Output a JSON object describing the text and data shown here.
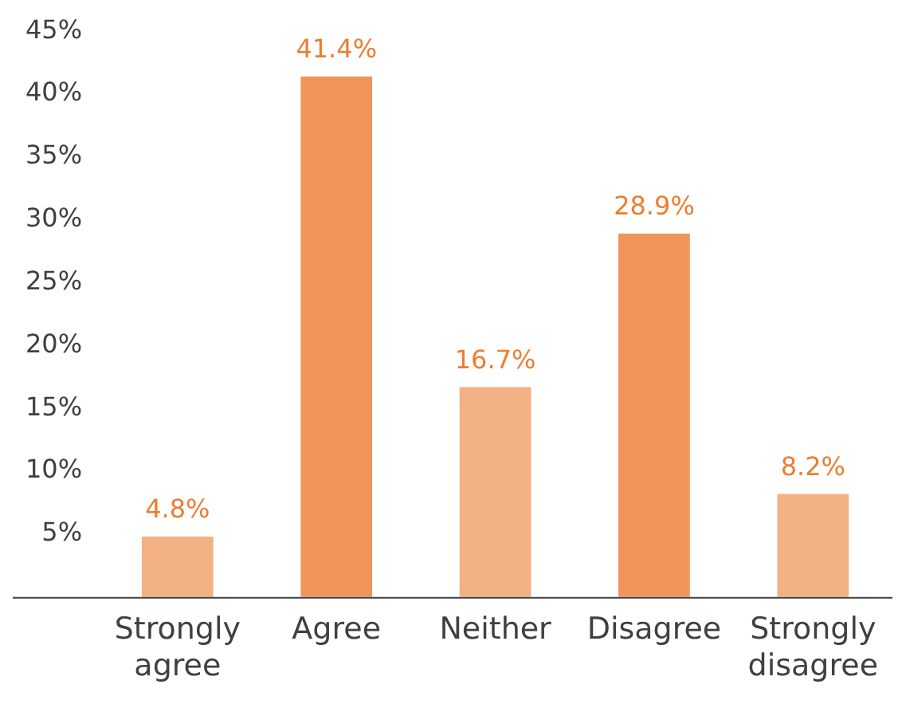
{
  "chart_data": {
    "type": "bar",
    "categories": [
      "Strongly agree",
      "Agree",
      "Neither",
      "Disagree",
      "Strongly disagree"
    ],
    "values": [
      4.8,
      41.4,
      16.7,
      28.9,
      8.2
    ],
    "colors": [
      "#f4b183",
      "#f0955a",
      "#f4b183",
      "#f0955a",
      "#f4b183"
    ],
    "value_labels": [
      "4.8%",
      "41.4%",
      "16.7%",
      "28.9%",
      "8.2%"
    ],
    "ylim": [
      0,
      45
    ],
    "yticks": [
      {
        "value": 5,
        "label": "5%"
      },
      {
        "value": 10,
        "label": "10%"
      },
      {
        "value": 15,
        "label": "15%"
      },
      {
        "value": 20,
        "label": "20%"
      },
      {
        "value": 25,
        "label": "25%"
      },
      {
        "value": 30,
        "label": "30%"
      },
      {
        "value": 35,
        "label": "35%"
      },
      {
        "value": 40,
        "label": "40%"
      },
      {
        "value": 45,
        "label": "45%"
      }
    ],
    "grid": false,
    "legend": false
  }
}
